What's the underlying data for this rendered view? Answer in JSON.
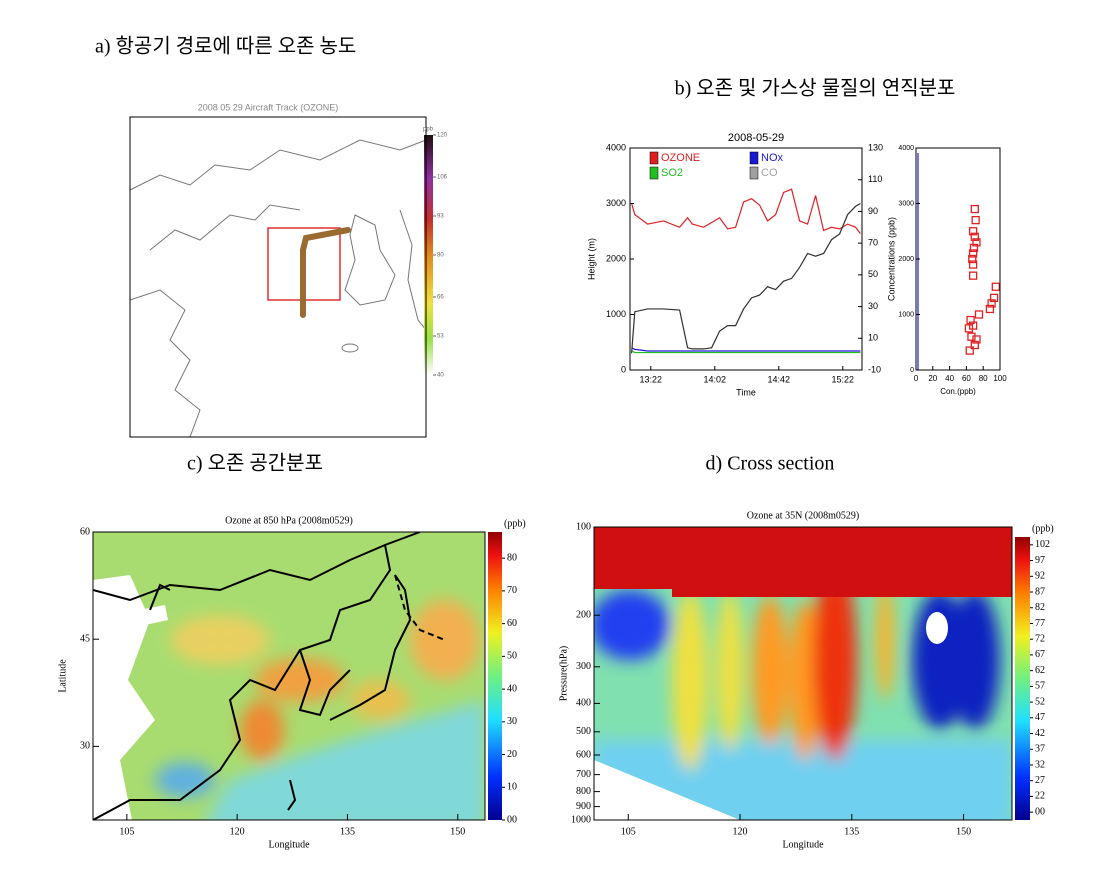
{
  "chart_data": [
    {
      "type": "map",
      "caption": "a) 항공기 경로에 따른 오존 농도",
      "title": "2008 05 29 Aircraft Track (OZONE)",
      "colorbar_label": "ppb",
      "clim": [
        40,
        120
      ],
      "colorbar_ticks": [
        40,
        53,
        66,
        80,
        93,
        106,
        120
      ]
    },
    {
      "type": "line",
      "caption": "b) 오존 및 가스상 물질의 연직분포",
      "title": "2008-05-29",
      "xlabel": "Time",
      "ylabel": "Height (m)",
      "x": [
        "13:10",
        "13:12",
        "13:20",
        "13:30",
        "13:40",
        "13:45",
        "13:48",
        "13:55",
        "14:00",
        "14:05",
        "14:10",
        "14:15",
        "14:20",
        "14:25",
        "14:30",
        "14:35",
        "14:40",
        "14:45",
        "14:50",
        "14:55",
        "15:00",
        "15:05",
        "15:10",
        "15:15",
        "15:20",
        "15:25",
        "15:30",
        "15:33"
      ],
      "xlim": [
        "13:09",
        "15:34"
      ],
      "xticks": [
        "13:22",
        "14:02",
        "14:42",
        "15:22"
      ],
      "ylim": [
        0,
        4000
      ],
      "yticks": [
        0,
        1000,
        2000,
        3000,
        4000
      ],
      "y2lim": [
        -10,
        130
      ],
      "y2ticks": [
        -10,
        10,
        30,
        50,
        70,
        90,
        110,
        130
      ],
      "series": [
        {
          "name": "OZONE",
          "color": "#e02020",
          "axis": "y2",
          "values": [
            95,
            88,
            82,
            84,
            80,
            86,
            82,
            80,
            83,
            86,
            79,
            80,
            96,
            98,
            94,
            84,
            88,
            102,
            104,
            84,
            82,
            100,
            78,
            80,
            79,
            82,
            80,
            76
          ]
        },
        {
          "name": "NOx",
          "color": "#1a1ad0",
          "axis": "y2",
          "values": [
            4,
            3,
            2,
            2,
            2,
            2,
            2,
            2,
            2,
            2,
            2,
            2,
            2,
            2,
            2,
            2,
            2,
            2,
            2,
            2,
            2,
            2,
            2,
            2,
            2,
            2,
            2,
            2
          ]
        },
        {
          "name": "SO2",
          "color": "#20c020",
          "axis": "y2",
          "values": [
            2,
            1,
            1,
            1,
            1,
            1,
            1,
            1,
            1,
            1,
            1,
            1,
            1,
            1,
            1,
            1,
            1,
            1,
            1,
            1,
            1,
            1,
            1,
            1,
            1,
            1,
            1,
            1
          ]
        },
        {
          "name": "CO",
          "color": "#a0a0a0",
          "line_color": "#303030",
          "values": [
            300,
            1050,
            1100,
            1100,
            1080,
            400,
            380,
            380,
            400,
            700,
            800,
            800,
            1100,
            1300,
            1350,
            1500,
            1450,
            1600,
            1650,
            1850,
            2100,
            2050,
            2100,
            2350,
            2450,
            2800,
            2950,
            3000
          ]
        }
      ]
    },
    {
      "type": "scatter",
      "xlabel": "Con.(ppb)",
      "ylabel": "Concentrations (ppb)",
      "color": "#e02020",
      "x": [
        65,
        63,
        68,
        66,
        70,
        64,
        72,
        75,
        68,
        68,
        67,
        68,
        69,
        70,
        68,
        71,
        70,
        72,
        90,
        93,
        95,
        88
      ],
      "y": [
        900,
        750,
        800,
        600,
        450,
        350,
        550,
        1000,
        1700,
        1900,
        2000,
        2100,
        2200,
        2400,
        2500,
        2700,
        2900,
        2300,
        1200,
        1300,
        1500,
        1100
      ],
      "xlim": [
        0,
        100
      ],
      "xticks": [
        0,
        20,
        40,
        60,
        80,
        100
      ],
      "ylim": [
        0,
        4000
      ],
      "yticks": [
        0,
        1000,
        2000,
        3000,
        4000
      ]
    },
    {
      "type": "contour",
      "caption": "c) 오존 공간분포",
      "title": "Ozone at 850 hPa (2008m0529)",
      "xlabel": "Longitude",
      "ylabel": "Latitude",
      "xlim": [
        100.4,
        153.7
      ],
      "xticks": [
        105,
        120,
        135,
        150
      ],
      "ylim": [
        19.7,
        60
      ],
      "yticks": [
        30,
        45,
        60
      ],
      "colorbar_label": "(ppb)",
      "clim": [
        0,
        88
      ],
      "colorbar_ticks": [
        {
          "value": 0,
          "label": "00"
        },
        10,
        20,
        30,
        40,
        50,
        60,
        70,
        80
      ]
    },
    {
      "type": "contour",
      "caption": "d) Cross section",
      "title": "Ozone at 35N (2008m0529)",
      "xlabel": "Longitude",
      "ylabel": "Pressure(hPa)",
      "xlim": [
        100.4,
        156.5
      ],
      "xticks": [
        105,
        120,
        135,
        150
      ],
      "ylim": [
        1000,
        100
      ],
      "ylog": true,
      "yticks": [
        100,
        200,
        300,
        400,
        500,
        600,
        700,
        800,
        900,
        1000
      ],
      "colorbar_label": "(ppb)",
      "colorbar_ticks": [
        {
          "value": 0,
          "label": "00"
        },
        22,
        27,
        32,
        37,
        42,
        47,
        52,
        57,
        62,
        67,
        72,
        77,
        82,
        87,
        92,
        97,
        102
      ]
    }
  ]
}
